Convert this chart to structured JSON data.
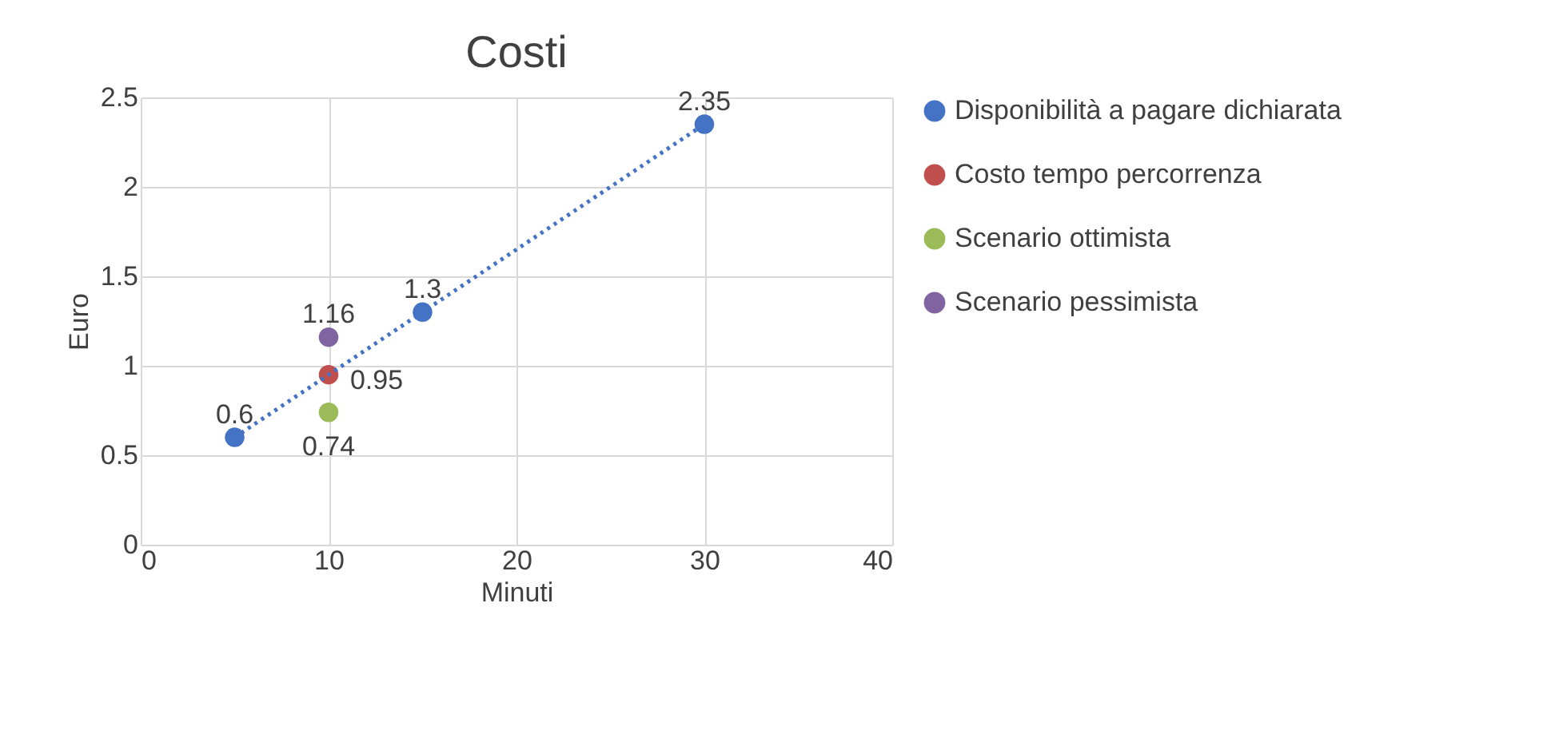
{
  "chart_data": {
    "type": "scatter",
    "title": "Costi",
    "xlabel": "Minuti",
    "ylabel": "Euro",
    "xlim": [
      0,
      40
    ],
    "xticks": [
      0,
      10,
      20,
      30,
      40
    ],
    "ylim": [
      0,
      2.5
    ],
    "yticks": [
      0,
      0.5,
      1,
      1.5,
      2,
      2.5
    ],
    "grid": true,
    "legend": "right",
    "data_labels": true,
    "marker": "circle",
    "series": [
      {
        "name": "Disponibilità a pagare dichiarata",
        "color": "#4472c4",
        "x": [
          5,
          15,
          30
        ],
        "values": [
          0.6,
          1.3,
          2.35
        ]
      },
      {
        "name": "Costo tempo percorrenza",
        "color": "#c0504d",
        "x": [
          10
        ],
        "values": [
          0.95
        ]
      },
      {
        "name": "Scenario ottimista",
        "color": "#9bbb59",
        "x": [
          10
        ],
        "values": [
          0.74
        ]
      },
      {
        "name": "Scenario pessimista",
        "color": "#8064a2",
        "x": [
          10
        ],
        "values": [
          1.16
        ]
      },
      {
        "type": "line",
        "color": "#4472c4",
        "line_style": "dotted",
        "marker": "none",
        "data_labels": false,
        "x": [
          5,
          30
        ],
        "values": [
          0.6,
          2.35
        ]
      }
    ]
  }
}
